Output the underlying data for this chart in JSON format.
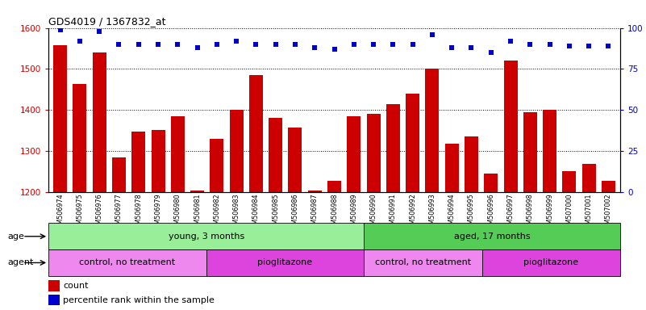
{
  "title": "GDS4019 / 1367832_at",
  "samples": [
    "GSM506974",
    "GSM506975",
    "GSM506976",
    "GSM506977",
    "GSM506978",
    "GSM506979",
    "GSM506980",
    "GSM506981",
    "GSM506982",
    "GSM506983",
    "GSM506984",
    "GSM506985",
    "GSM506986",
    "GSM506987",
    "GSM506988",
    "GSM506989",
    "GSM506990",
    "GSM506991",
    "GSM506992",
    "GSM506993",
    "GSM506994",
    "GSM506995",
    "GSM506996",
    "GSM506997",
    "GSM506998",
    "GSM506999",
    "GSM507000",
    "GSM507001",
    "GSM507002"
  ],
  "counts": [
    1558,
    1463,
    1540,
    1285,
    1347,
    1352,
    1385,
    1205,
    1330,
    1400,
    1485,
    1380,
    1358,
    1205,
    1228,
    1385,
    1390,
    1415,
    1440,
    1500,
    1318,
    1335,
    1245,
    1520,
    1395,
    1400,
    1252,
    1268,
    1228
  ],
  "percentile_ranks": [
    99,
    92,
    98,
    90,
    90,
    90,
    90,
    88,
    90,
    92,
    90,
    90,
    90,
    88,
    87,
    90,
    90,
    90,
    90,
    96,
    88,
    88,
    85,
    92,
    90,
    90,
    89,
    89,
    89
  ],
  "ylim_left": [
    1200,
    1600
  ],
  "ylim_right": [
    0,
    100
  ],
  "bar_color": "#cc0000",
  "dot_color": "#0000cc",
  "annotation_groups": [
    {
      "label": "young, 3 months",
      "start": 0,
      "end": 16,
      "color": "#99ee99"
    },
    {
      "label": "aged, 17 months",
      "start": 16,
      "end": 29,
      "color": "#55cc55"
    }
  ],
  "agent_groups": [
    {
      "label": "control, no treatment",
      "start": 0,
      "end": 8,
      "color": "#ee88ee"
    },
    {
      "label": "pioglitazone",
      "start": 8,
      "end": 16,
      "color": "#dd44dd"
    },
    {
      "label": "control, no treatment",
      "start": 16,
      "end": 22,
      "color": "#ee88ee"
    },
    {
      "label": "pioglitazone",
      "start": 22,
      "end": 29,
      "color": "#dd44dd"
    }
  ],
  "age_label": "age",
  "agent_label": "agent",
  "legend_count_label": "count",
  "legend_pct_label": "percentile rank within the sample",
  "yticks_left": [
    1200,
    1300,
    1400,
    1500,
    1600
  ],
  "yticks_right": [
    0,
    25,
    50,
    75,
    100
  ],
  "bar_width": 0.7,
  "tick_bg_color": "#dddddd"
}
